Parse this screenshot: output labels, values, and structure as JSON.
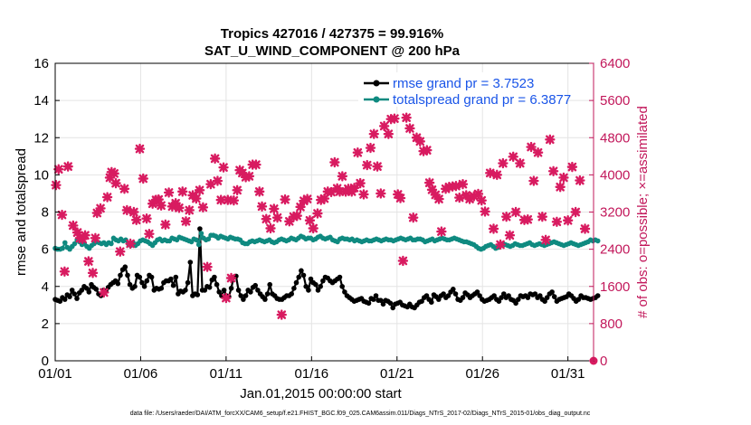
{
  "chart_data": {
    "type": "line",
    "title": "Tropics 427016 / 427375 = 99.916%",
    "subtitle": "SAT_U_WIND_COMPONENT @ 200 hPa",
    "xlabel": "Jan.01,2015 00:00:00 start",
    "ylabel_left": "rmse and totalspread",
    "ylabel_right": "# of obs: o=possible; ×=assimilated",
    "footnote": "data file: /Users/raeder/DAI/ATM_forcXX/CAM6_setup/f.e21.FHIST_BGC.f09_025.CAM6assim.011/Diags_NTrS_2017-02/Diags_NTrS_2015-01/obs_diag_output.nc",
    "x_tick_labels": [
      "01/01",
      "01/06",
      "01/11",
      "01/16",
      "01/21",
      "01/26",
      "01/31"
    ],
    "x_tick_days": [
      1,
      6,
      11,
      16,
      21,
      26,
      31
    ],
    "xlim": [
      1,
      32.5
    ],
    "ylim_left": [
      0,
      16
    ],
    "yticks_left": [
      "0",
      "2",
      "4",
      "6",
      "8",
      "10",
      "12",
      "14",
      "16"
    ],
    "ylim_right": [
      0,
      6400
    ],
    "yticks_right": [
      "0",
      "800",
      "1600",
      "2400",
      "3200",
      "4000",
      "4800",
      "5600",
      "6400"
    ],
    "colors": {
      "rmse": "#000000",
      "spread": "#0f8a80",
      "obs": "#d81b60",
      "legend_text": "#1a55e8",
      "right_axis": "#c2185b"
    },
    "legend": {
      "rmse_label": "rmse grand pr = 3.7523",
      "spread_label": "totalspread grand pr = 6.3877"
    },
    "series": [
      {
        "name": "rmse",
        "axis": "left",
        "values": [
          3.3,
          3.25,
          3.2,
          3.4,
          3.3,
          3.55,
          3.45,
          3.8,
          3.6,
          3.35,
          3.65,
          3.8,
          4.0,
          3.9,
          3.7,
          4.1,
          3.95,
          3.85,
          3.6,
          3.5,
          3.8,
          3.75,
          3.95,
          4.1,
          4.2,
          4.3,
          4.15,
          4.6,
          4.9,
          5.05,
          4.6,
          4.1,
          3.9,
          4.0,
          4.6,
          4.5,
          4.2,
          4.0,
          4.3,
          4.6,
          4.5,
          3.8,
          3.9,
          3.85,
          3.9,
          4.2,
          4.3,
          4.3,
          4.4,
          4.05,
          4.5,
          3.6,
          3.75,
          3.7,
          3.8,
          4.2,
          5.3,
          3.5,
          3.6,
          3.55,
          7.1,
          3.8,
          3.8,
          4.0,
          3.95,
          4.35,
          4.5,
          4.1,
          3.7,
          3.5,
          3.8,
          3.5,
          3.45,
          3.9,
          4.5,
          4.55,
          3.8,
          3.5,
          3.3,
          3.5,
          3.8,
          3.7,
          3.95,
          4.05,
          3.8,
          3.6,
          3.45,
          3.3,
          3.6,
          4.1,
          3.6,
          3.5,
          3.35,
          3.3,
          3.3,
          3.4,
          3.5,
          3.5,
          3.6,
          3.9,
          4.2,
          4.5,
          4.85,
          4.6,
          4.0,
          3.8,
          4.4,
          4.2,
          4.1,
          3.8,
          4.0,
          4.3,
          4.5,
          4.45,
          4.3,
          4.2,
          4.3,
          4.4,
          4.5,
          4.0,
          3.7,
          3.5,
          3.4,
          3.3,
          3.2,
          3.25,
          3.3,
          3.35,
          3.2,
          3.15,
          3.1,
          3.35,
          3.3,
          3.5,
          3.25,
          3.25,
          3.05,
          3.25,
          3.2,
          3.1,
          2.85,
          3.05,
          3.1,
          3.15,
          3.0,
          2.95,
          2.9,
          3.05,
          2.9,
          2.85,
          3.0,
          3.15,
          3.2,
          3.4,
          3.5,
          3.3,
          3.15,
          3.55,
          3.45,
          3.3,
          3.5,
          3.6,
          3.4,
          3.5,
          3.7,
          3.85,
          3.6,
          3.3,
          3.25,
          3.4,
          3.65,
          3.55,
          3.4,
          3.5,
          3.6,
          3.7,
          3.5,
          3.3,
          3.2,
          3.25,
          3.3,
          3.4,
          3.5,
          3.3,
          3.2,
          3.4,
          3.6,
          3.4,
          3.5,
          3.3,
          3.25,
          3.1,
          3.3,
          3.5,
          3.45,
          3.5,
          3.4,
          3.6,
          3.55,
          3.6,
          3.4,
          3.5,
          3.3,
          3.2,
          3.4,
          3.6,
          3.7,
          3.45,
          3.2,
          3.3,
          3.35,
          3.4,
          3.45,
          3.6,
          3.5,
          3.35,
          3.2,
          3.3,
          3.5,
          3.4,
          3.4,
          3.35,
          3.3,
          3.35,
          3.4,
          3.5
        ]
      },
      {
        "name": "totalspread",
        "axis": "left",
        "values": [
          6.05,
          6.0,
          6.0,
          6.05,
          6.35,
          6.1,
          6.0,
          6.15,
          6.3,
          6.5,
          6.4,
          6.25,
          6.3,
          6.15,
          6.05,
          6.2,
          6.3,
          6.4,
          6.35,
          6.3,
          6.35,
          6.25,
          6.35,
          6.3,
          6.6,
          6.5,
          6.45,
          6.55,
          6.45,
          6.5,
          6.3,
          6.2,
          6.35,
          6.2,
          6.3,
          6.45,
          6.5,
          6.45,
          6.4,
          6.3,
          6.2,
          6.35,
          6.5,
          6.55,
          6.45,
          6.5,
          6.45,
          6.45,
          6.6,
          6.55,
          6.5,
          6.65,
          6.6,
          6.55,
          6.5,
          6.45,
          6.4,
          6.55,
          6.5,
          6.25,
          6.85,
          6.6,
          6.5,
          6.55,
          6.75,
          6.75,
          6.7,
          6.6,
          6.7,
          6.65,
          6.6,
          6.55,
          6.65,
          6.6,
          6.55,
          6.55,
          6.5,
          6.35,
          6.3,
          6.3,
          6.4,
          6.45,
          6.4,
          6.45,
          6.5,
          6.45,
          6.4,
          6.45,
          6.5,
          6.4,
          6.35,
          6.4,
          6.5,
          6.55,
          6.5,
          6.45,
          6.5,
          6.6,
          6.55,
          6.5,
          6.6,
          6.7,
          6.65,
          6.55,
          6.6,
          6.6,
          6.5,
          6.55,
          6.65,
          6.7,
          6.6,
          6.55,
          6.6,
          6.65,
          6.5,
          6.45,
          6.4,
          6.55,
          6.6,
          6.55,
          6.55,
          6.5,
          6.55,
          6.45,
          6.5,
          6.45,
          6.4,
          6.45,
          6.5,
          6.45,
          6.45,
          6.5,
          6.55,
          6.5,
          6.45,
          6.5,
          6.55,
          6.5,
          6.5,
          6.45,
          6.5,
          6.55,
          6.6,
          6.55,
          6.5,
          6.55,
          6.6,
          6.5,
          6.5,
          6.55,
          6.55,
          6.5,
          6.4,
          6.45,
          6.5,
          6.55,
          6.45,
          6.5,
          6.55,
          6.6,
          6.55,
          6.5,
          6.5,
          6.55,
          6.6,
          6.55,
          6.5,
          6.45,
          6.4,
          6.4,
          6.35,
          6.3,
          6.25,
          6.15,
          6.05,
          6.0,
          6.05,
          6.15,
          6.2,
          6.25,
          6.15,
          6.05,
          6.1,
          6.2,
          6.3,
          6.25,
          6.2,
          6.15,
          6.2,
          6.3,
          6.25,
          6.2,
          6.2,
          6.25,
          6.3,
          6.35,
          6.25,
          6.2,
          6.25,
          6.3,
          6.25,
          6.2,
          6.25,
          6.3,
          6.35,
          6.4,
          6.35,
          6.3,
          6.25,
          6.2,
          6.25,
          6.3,
          6.35,
          6.3,
          6.25,
          6.2,
          6.25,
          6.3,
          6.35,
          6.4,
          6.5,
          6.45,
          6.5,
          6.45
        ]
      },
      {
        "name": "obs_assimilated",
        "axis": "right",
        "points": [
          [
            1.05,
            3780
          ],
          [
            1.2,
            4120
          ],
          [
            1.4,
            3140
          ],
          [
            1.55,
            1920
          ],
          [
            1.75,
            4180
          ],
          [
            2.05,
            2910
          ],
          [
            2.3,
            2760
          ],
          [
            2.45,
            2640
          ],
          [
            2.6,
            2620
          ],
          [
            2.75,
            2700
          ],
          [
            2.95,
            2140
          ],
          [
            3.2,
            1890
          ],
          [
            3.35,
            2640
          ],
          [
            3.45,
            3180
          ],
          [
            3.65,
            3280
          ],
          [
            3.85,
            1470
          ],
          [
            4.05,
            3520
          ],
          [
            4.2,
            3940
          ],
          [
            4.3,
            4060
          ],
          [
            4.45,
            4030
          ],
          [
            4.55,
            3820
          ],
          [
            4.8,
            2350
          ],
          [
            5.05,
            3700
          ],
          [
            5.2,
            3240
          ],
          [
            5.4,
            2520
          ],
          [
            5.6,
            3200
          ],
          [
            5.75,
            3030
          ],
          [
            5.95,
            4560
          ],
          [
            6.15,
            3920
          ],
          [
            6.35,
            3060
          ],
          [
            6.5,
            2730
          ],
          [
            6.7,
            3380
          ],
          [
            6.9,
            3460
          ],
          [
            7.05,
            3470
          ],
          [
            7.2,
            3340
          ],
          [
            7.45,
            2930
          ],
          [
            7.65,
            3620
          ],
          [
            7.85,
            3320
          ],
          [
            8.05,
            3390
          ],
          [
            8.25,
            3290
          ],
          [
            8.45,
            3640
          ],
          [
            8.65,
            3000
          ],
          [
            8.85,
            3240
          ],
          [
            9.05,
            3560
          ],
          [
            9.25,
            3490
          ],
          [
            9.45,
            3670
          ],
          [
            9.65,
            3300
          ],
          [
            9.9,
            2020
          ],
          [
            10.1,
            3800
          ],
          [
            10.35,
            4350
          ],
          [
            10.5,
            3870
          ],
          [
            10.7,
            3460
          ],
          [
            10.85,
            4160
          ],
          [
            11.0,
            1350
          ],
          [
            11.1,
            3460
          ],
          [
            11.3,
            1780
          ],
          [
            11.45,
            3450
          ],
          [
            11.65,
            3670
          ],
          [
            11.8,
            4100
          ],
          [
            11.95,
            4040
          ],
          [
            12.15,
            3950
          ],
          [
            12.35,
            3970
          ],
          [
            12.55,
            4220
          ],
          [
            12.75,
            4220
          ],
          [
            12.95,
            3640
          ],
          [
            13.1,
            3320
          ],
          [
            13.35,
            3050
          ],
          [
            13.6,
            2850
          ],
          [
            13.8,
            3270
          ],
          [
            14.0,
            3080
          ],
          [
            14.25,
            990
          ],
          [
            14.45,
            3470
          ],
          [
            14.7,
            3000
          ],
          [
            14.95,
            3100
          ],
          [
            15.15,
            3120
          ],
          [
            15.35,
            3310
          ],
          [
            15.55,
            3440
          ],
          [
            15.75,
            3480
          ],
          [
            15.9,
            3020
          ],
          [
            16.1,
            2850
          ],
          [
            16.35,
            3170
          ],
          [
            16.55,
            3460
          ],
          [
            16.75,
            3490
          ],
          [
            16.95,
            3640
          ],
          [
            17.15,
            3630
          ],
          [
            17.35,
            4270
          ],
          [
            17.5,
            3710
          ],
          [
            17.65,
            3640
          ],
          [
            17.8,
            3970
          ],
          [
            18.0,
            3640
          ],
          [
            18.15,
            3700
          ],
          [
            18.35,
            3640
          ],
          [
            18.5,
            3720
          ],
          [
            18.7,
            4480
          ],
          [
            18.85,
            3820
          ],
          [
            19.05,
            3580
          ],
          [
            19.25,
            4210
          ],
          [
            19.45,
            4580
          ],
          [
            19.65,
            4880
          ],
          [
            19.85,
            4180
          ],
          [
            20.05,
            3600
          ],
          [
            20.25,
            5050
          ],
          [
            20.5,
            4880
          ],
          [
            20.65,
            5200
          ],
          [
            20.85,
            5210
          ],
          [
            21.05,
            3580
          ],
          [
            21.2,
            3500
          ],
          [
            21.35,
            2150
          ],
          [
            21.55,
            5230
          ],
          [
            21.75,
            5000
          ],
          [
            21.95,
            3080
          ],
          [
            22.15,
            4800
          ],
          [
            22.35,
            4720
          ],
          [
            22.55,
            4510
          ],
          [
            22.75,
            4530
          ],
          [
            22.9,
            3830
          ],
          [
            23.05,
            3680
          ],
          [
            23.25,
            3570
          ],
          [
            23.45,
            3480
          ],
          [
            23.6,
            2780
          ],
          [
            23.85,
            3700
          ],
          [
            24.05,
            3740
          ],
          [
            24.25,
            3750
          ],
          [
            24.45,
            3760
          ],
          [
            24.65,
            3510
          ],
          [
            24.85,
            3800
          ],
          [
            25.05,
            3560
          ],
          [
            25.25,
            3480
          ],
          [
            25.5,
            3540
          ],
          [
            25.75,
            3590
          ],
          [
            25.95,
            3450
          ],
          [
            26.15,
            3210
          ],
          [
            26.45,
            4040
          ],
          [
            26.65,
            2840
          ],
          [
            26.85,
            4000
          ],
          [
            27.05,
            2500
          ],
          [
            27.2,
            4250
          ],
          [
            27.4,
            3100
          ],
          [
            27.6,
            2700
          ],
          [
            27.8,
            4390
          ],
          [
            27.95,
            3200
          ],
          [
            28.2,
            4250
          ],
          [
            28.45,
            3030
          ],
          [
            28.65,
            3040
          ],
          [
            28.85,
            4600
          ],
          [
            29.0,
            3870
          ],
          [
            29.25,
            4480
          ],
          [
            29.5,
            3100
          ],
          [
            29.7,
            2600
          ],
          [
            29.95,
            4760
          ],
          [
            30.15,
            4080
          ],
          [
            30.35,
            2990
          ],
          [
            30.55,
            3740
          ],
          [
            30.75,
            3940
          ],
          [
            31.0,
            3020
          ],
          [
            31.25,
            4170
          ],
          [
            31.45,
            3200
          ],
          [
            31.7,
            3880
          ],
          [
            32.0,
            2840
          ]
        ]
      },
      {
        "name": "obs_possible",
        "axis": "right",
        "points": [
          [
            32.5,
            0
          ]
        ]
      }
    ]
  }
}
